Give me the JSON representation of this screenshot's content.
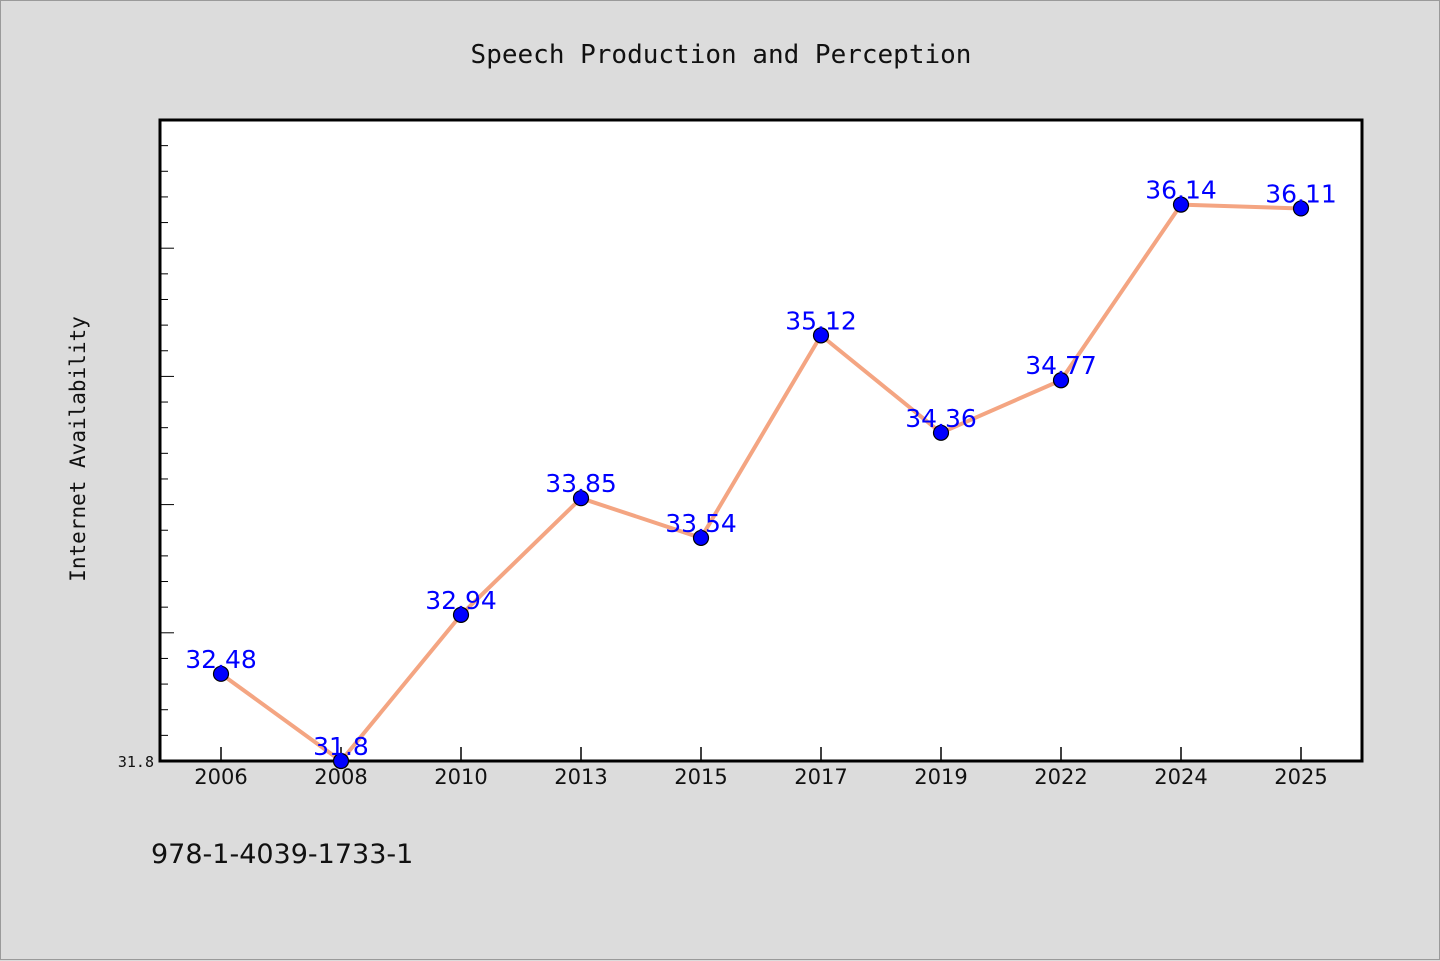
{
  "isbn": "978-1-4039-1733-1",
  "colors": {
    "background": "#dcdcdc",
    "plot_background": "#ffffff",
    "line": "#f4a582",
    "marker_fill": "#0000ff",
    "data_label": "#0000ff"
  },
  "chart_data": {
    "type": "line",
    "title": "Speech Production and Perception",
    "xlabel": "",
    "ylabel": "Internet Availability",
    "categories": [
      "2006",
      "2008",
      "2010",
      "2013",
      "2015",
      "2017",
      "2019",
      "2022",
      "2024",
      "2025"
    ],
    "series": [
      {
        "values": [
          32.48,
          31.8,
          32.94,
          33.85,
          33.54,
          35.12,
          34.36,
          34.77,
          36.14,
          36.11
        ],
        "labels": [
          "32.48",
          "31.8",
          "32.94",
          "33.85",
          "33.54",
          "35.12",
          "34.36",
          "34.77",
          "36.14",
          "36.11"
        ]
      }
    ],
    "ylim": [
      31.8,
      36.8
    ],
    "yticks": [
      "31.8"
    ],
    "grid": false,
    "legend": "none"
  }
}
